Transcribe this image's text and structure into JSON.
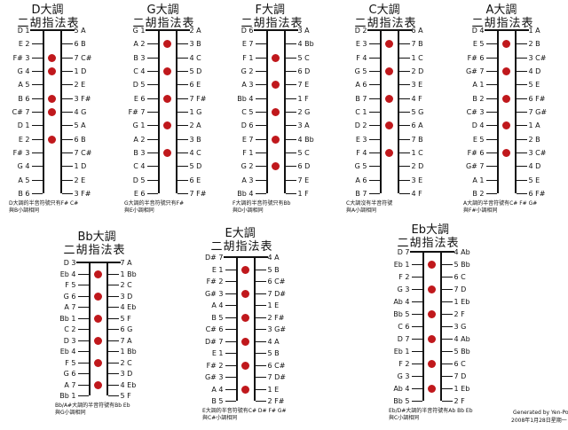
{
  "charts": [
    {
      "title": "D大調",
      "subtitle": "二胡指法表",
      "left": [
        "D 1",
        "E 2",
        "F# 3",
        "G 4",
        "A 5",
        "B 6",
        "C# 7",
        "D 1",
        "E 2",
        "F# 3",
        "G 4",
        "A 5",
        "B 6"
      ],
      "right": [
        "5 A",
        "6 B",
        "7 C#",
        "1 D",
        "2 E",
        "3 F#",
        "4 G",
        "5 A",
        "6 B",
        "7 C#",
        "1 D",
        "2 E",
        "3 F#"
      ],
      "note": [
        "D大調的半音符號只有F# C#",
        "與B小調相同"
      ]
    },
    {
      "title": "G大調",
      "subtitle": "二胡指法表",
      "left": [
        "G 1",
        "A 2",
        "B 3",
        "C 4",
        "D 5",
        "E 6",
        "F# 7",
        "G 1",
        "A 2",
        "B 3",
        "C 4",
        "D 5",
        "E 6"
      ],
      "right": [
        "2 A",
        "3 B",
        "4 C",
        "5 D",
        "6 E",
        "7 F#",
        "1 G",
        "2 A",
        "3 B",
        "4 C",
        "5 D",
        "6 E",
        "7 F#"
      ],
      "note": [
        "G大調的半音符號只有F#",
        "與E小調相同"
      ]
    },
    {
      "title": "F大調",
      "subtitle": "二胡指法表",
      "left": [
        "D 6",
        "E 7",
        "F 1",
        "G 2",
        "A 3",
        "Bb 4",
        "C 5",
        "D 6",
        "E 7",
        "F 1",
        "G 2",
        "A 3",
        "Bb 4"
      ],
      "right": [
        "3 A",
        "4 Bb",
        "5 C",
        "6 D",
        "7 E",
        "1 F",
        "2 G",
        "3 A",
        "4 Bb",
        "5 C",
        "6 D",
        "7 E",
        "1 F"
      ],
      "note": [
        "F大調的半音符號只有Bb",
        "與D小調相同"
      ]
    },
    {
      "title": "C大調",
      "subtitle": "二胡指法表",
      "left": [
        "D 2",
        "E 3",
        "F 4",
        "G 5",
        "A 6",
        "B 7",
        "C 1",
        "D 2",
        "E 3",
        "F 4",
        "G 5",
        "A 6",
        "B 7"
      ],
      "right": [
        "6 A",
        "7 B",
        "1 C",
        "2 D",
        "3 E",
        "4 F",
        "5 G",
        "6 A",
        "7 B",
        "1 C",
        "2 D",
        "3 E",
        "4 F"
      ],
      "note": [
        "C大調沒有半音符號",
        "與A小調相同"
      ]
    },
    {
      "title": "A大調",
      "subtitle": "二胡指法表",
      "left": [
        "D 4",
        "E 5",
        "F# 6",
        "G# 7",
        "A 1",
        "B 2",
        "C# 3",
        "D 4",
        "E 5",
        "F# 6",
        "G# 7",
        "A 1",
        "B 2"
      ],
      "right": [
        "1 A",
        "2 B",
        "3 C#",
        "4 D",
        "5 E",
        "6 F#",
        "7 G#",
        "1 A",
        "2 B",
        "3 C#",
        "4 D",
        "5 E",
        "6 F#"
      ],
      "note": [
        "A大調的半音符號有C# F# G#",
        "與F#小調相同"
      ]
    },
    {
      "title": "Bb大調",
      "subtitle": "二胡指法表",
      "left": [
        "D 3",
        "Eb 4",
        "F 5",
        "G 6",
        "A 7",
        "Bb 1",
        "C 2",
        "D 3",
        "Eb 4",
        "F 5",
        "G 6",
        "A 7",
        "Bb 1"
      ],
      "right": [
        "7 A",
        "1 Bb",
        "2 C",
        "3 D",
        "4 Eb",
        "5 F",
        "6 G",
        "7 A",
        "1 Bb",
        "2 C",
        "3 D",
        "4 Eb",
        "5 F"
      ],
      "note": [
        "Bb/A#大調的半音符號有Bb Eb",
        "與G小調相同"
      ]
    },
    {
      "title": "E大調",
      "subtitle": "二胡指法表",
      "left": [
        "D# 7",
        "E 1",
        "F# 2",
        "G# 3",
        "A 4",
        "B 5",
        "C# 6",
        "D# 7",
        "E 1",
        "F# 2",
        "G# 3",
        "A 4",
        "B 5"
      ],
      "right": [
        "4 A",
        "5 B",
        "6 C#",
        "7 D#",
        "1 E",
        "2 F#",
        "3 G#",
        "4 A",
        "5 B",
        "6 C#",
        "7 D#",
        "1 E",
        "2 F#"
      ],
      "note": [
        "E大調的半音符號有C# D# F# G#",
        "與C#小調相同"
      ]
    },
    {
      "title": "Eb大調",
      "subtitle": "二胡指法表",
      "left": [
        "D 7",
        "Eb 1",
        "F 2",
        "G 3",
        "Ab 4",
        "Bb 5",
        "C 6",
        "D 7",
        "Eb 1",
        "F 2",
        "G 3",
        "Ab 4",
        "Bb 5"
      ],
      "right": [
        "4 Ab",
        "5 Bb",
        "6 C",
        "7 D",
        "1 Eb",
        "2 F",
        "3 G",
        "4 Ab",
        "5 Bb",
        "6 C",
        "7 D",
        "1 Eb",
        "2 F"
      ],
      "note": [
        "Eb/D#大調的半音符號有Ab Bb Eb",
        "與C小調相同"
      ]
    }
  ],
  "footer": {
    "line1": "Generated by Yen-Po",
    "line2": "2008年1月28日星期一"
  },
  "colors": {
    "dot": "#c0181c",
    "ink": "#111111"
  }
}
